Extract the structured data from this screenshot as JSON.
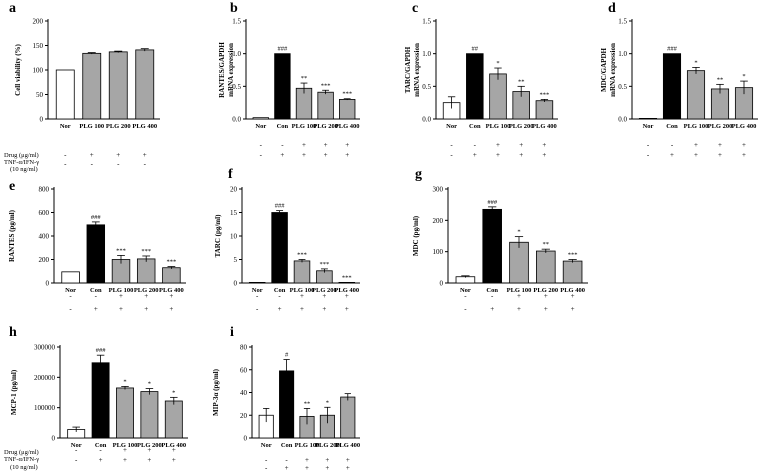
{
  "figure": {
    "row_labels": [
      "Drug (μg/ml)",
      "TNF-α/IFN-γ",
      "(10 ng/ml)"
    ]
  },
  "colors": {
    "nor": "#ffffff",
    "con": "#000000",
    "plg": "#a6a6a6",
    "axis": "#000000"
  },
  "chart_data": [
    {
      "id": "a",
      "panel": "a",
      "type": "bar",
      "ylabel": "Cell viability (%)",
      "categories": [
        "Nor",
        "PLG 100",
        "PLG 200",
        "PLG 400"
      ],
      "groups": [
        "nor",
        "plg",
        "plg",
        "plg"
      ],
      "values": [
        100,
        134,
        137,
        141
      ],
      "errors": [
        0,
        1.5,
        1.5,
        2.5
      ],
      "significance": [
        "",
        "",
        "",
        ""
      ],
      "ylim": [
        0,
        200
      ],
      "yticks": [
        0,
        50,
        100,
        150,
        200
      ],
      "table_rows": [
        [
          "-",
          "+",
          "+",
          "+"
        ],
        [
          "-",
          "-",
          "-",
          "-"
        ]
      ]
    },
    {
      "id": "b",
      "panel": "b",
      "type": "bar",
      "ylabel": "RANTES/GAPDH",
      "ylabel2": "mRNA expression",
      "categories": [
        "Nor",
        "Con",
        "PLG 100",
        "PLG 200",
        "PLG 400"
      ],
      "groups": [
        "nor",
        "con",
        "plg",
        "plg",
        "plg"
      ],
      "values": [
        0.02,
        1.0,
        0.47,
        0.41,
        0.3
      ],
      "errors": [
        0,
        0,
        0.08,
        0.03,
        0.01
      ],
      "significance": [
        "",
        "###",
        "**",
        "***",
        "***"
      ],
      "ylim": [
        0,
        1.5
      ],
      "yticks": [
        0.0,
        0.5,
        1.0,
        1.5
      ],
      "table_rows": [
        [
          "-",
          "-",
          "+",
          "+",
          "+"
        ],
        [
          "-",
          "+",
          "+",
          "+",
          "+"
        ]
      ]
    },
    {
      "id": "c",
      "panel": "c",
      "type": "bar",
      "ylabel": "TARC/GAPDH",
      "ylabel2": "mRNA expression",
      "categories": [
        "Nor",
        "Con",
        "PLG 100",
        "PLG 200",
        "PLG 400"
      ],
      "groups": [
        "nor",
        "con",
        "plg",
        "plg",
        "plg"
      ],
      "values": [
        0.25,
        1.0,
        0.69,
        0.42,
        0.28
      ],
      "errors": [
        0.09,
        0,
        0.09,
        0.08,
        0.02
      ],
      "significance": [
        "",
        "##",
        "*",
        "**",
        "***"
      ],
      "ylim": [
        0,
        1.5
      ],
      "yticks": [
        0.0,
        0.5,
        1.0,
        1.5
      ],
      "table_rows": [
        [
          "-",
          "-",
          "+",
          "+",
          "+"
        ],
        [
          "-",
          "+",
          "+",
          "+",
          "+"
        ]
      ]
    },
    {
      "id": "d",
      "panel": "d",
      "type": "bar",
      "ylabel": "MDC/GAPDH",
      "ylabel2": "mRNA expression",
      "categories": [
        "Nor",
        "Con",
        "PLG 100",
        "PLG 200",
        "PLG 400"
      ],
      "groups": [
        "nor",
        "con",
        "plg",
        "plg",
        "plg"
      ],
      "values": [
        0.0,
        1.0,
        0.74,
        0.46,
        0.48
      ],
      "errors": [
        0,
        0,
        0.05,
        0.07,
        0.1
      ],
      "significance": [
        "",
        "###",
        "*",
        "**",
        "*"
      ],
      "ylim": [
        0,
        1.5
      ],
      "yticks": [
        0.0,
        0.5,
        1.0,
        1.5
      ],
      "table_rows": [
        [
          "-",
          "-",
          "+",
          "+",
          "+"
        ],
        [
          "-",
          "+",
          "+",
          "+",
          "+"
        ]
      ]
    },
    {
      "id": "e",
      "panel": "e",
      "type": "bar",
      "ylabel": "RANTES (pg/ml)",
      "categories": [
        "Nor",
        "Con",
        "PLG 100",
        "PLG 200",
        "PLG 400"
      ],
      "groups": [
        "nor",
        "con",
        "plg",
        "plg",
        "plg"
      ],
      "values": [
        95,
        495,
        200,
        205,
        130
      ],
      "errors": [
        0,
        25,
        35,
        25,
        10
      ],
      "significance": [
        "",
        "###",
        "***",
        "***",
        "***"
      ],
      "ylim": [
        0,
        800
      ],
      "yticks": [
        0,
        200,
        400,
        600,
        800
      ],
      "table_rows": [
        [
          "-",
          "-",
          "+",
          "+",
          "+"
        ],
        [
          "-",
          "+",
          "+",
          "+",
          "+"
        ]
      ]
    },
    {
      "id": "f",
      "panel": "f",
      "type": "bar",
      "ylabel": "TARC (pg/ml)",
      "categories": [
        "Nor",
        "Con",
        "PLG 100",
        "PLG 200",
        "PLG 400"
      ],
      "groups": [
        "nor",
        "con",
        "plg",
        "plg",
        "plg"
      ],
      "values": [
        0.1,
        15.0,
        4.7,
        2.6,
        0.1
      ],
      "errors": [
        0,
        0.4,
        0.3,
        0.4,
        0
      ],
      "significance": [
        "",
        "###",
        "***",
        "***",
        "***"
      ],
      "ylim": [
        0,
        20
      ],
      "yticks": [
        0,
        5,
        10,
        15,
        20
      ],
      "table_rows": [
        [
          "-",
          "-",
          "+",
          "+",
          "+"
        ],
        [
          "-",
          "+",
          "+",
          "+",
          "+"
        ]
      ]
    },
    {
      "id": "g",
      "panel": "g",
      "type": "bar",
      "ylabel": "MDC (pg/ml)",
      "categories": [
        "Nor",
        "Con",
        "PLG 100",
        "PLG 200",
        "PLG 400"
      ],
      "groups": [
        "nor",
        "con",
        "plg",
        "plg",
        "plg"
      ],
      "values": [
        20,
        235,
        130,
        102,
        70
      ],
      "errors": [
        3,
        8,
        18,
        6,
        5
      ],
      "significance": [
        "",
        "###",
        "*",
        "**",
        "***"
      ],
      "ylim": [
        0,
        300
      ],
      "yticks": [
        0,
        100,
        200,
        300
      ],
      "table_rows": [
        [
          "-",
          "-",
          "+",
          "+",
          "+"
        ],
        [
          "-",
          "+",
          "+",
          "+",
          "+"
        ]
      ]
    },
    {
      "id": "h",
      "panel": "h",
      "type": "bar",
      "ylabel": "MCP-1 (pg/ml)",
      "categories": [
        "Nor",
        "Con",
        "PLG 100",
        "PLG 200",
        "PLG 400"
      ],
      "groups": [
        "nor",
        "con",
        "plg",
        "plg",
        "plg"
      ],
      "values": [
        28000,
        248000,
        165000,
        153000,
        122000
      ],
      "errors": [
        8000,
        25000,
        5000,
        10000,
        12000
      ],
      "significance": [
        "",
        "###",
        "*",
        "*",
        "*"
      ],
      "ylim": [
        0,
        300000
      ],
      "yticks": [
        0,
        100000,
        200000,
        300000
      ],
      "table_rows": [
        [
          "-",
          "-",
          "+",
          "+",
          "+"
        ],
        [
          "-",
          "+",
          "+",
          "+",
          "+"
        ]
      ]
    },
    {
      "id": "i",
      "panel": "i",
      "type": "bar",
      "ylabel": "MIP-3α (pg/ml)",
      "categories": [
        "Nor",
        "Con",
        "PLG 100",
        "PLG 200",
        "PLG 400"
      ],
      "groups": [
        "nor",
        "con",
        "plg",
        "plg",
        "plg"
      ],
      "values": [
        20,
        59,
        19,
        20,
        36
      ],
      "errors": [
        6,
        10,
        7,
        7,
        3
      ],
      "significance": [
        "",
        "#",
        "**",
        "*",
        ""
      ],
      "ylim": [
        0,
        80
      ],
      "yticks": [
        0,
        20,
        40,
        60,
        80
      ],
      "table_rows": [
        [
          "-",
          "-",
          "+",
          "+",
          "+"
        ],
        [
          "-",
          "+",
          "+",
          "+",
          "+"
        ]
      ]
    }
  ]
}
